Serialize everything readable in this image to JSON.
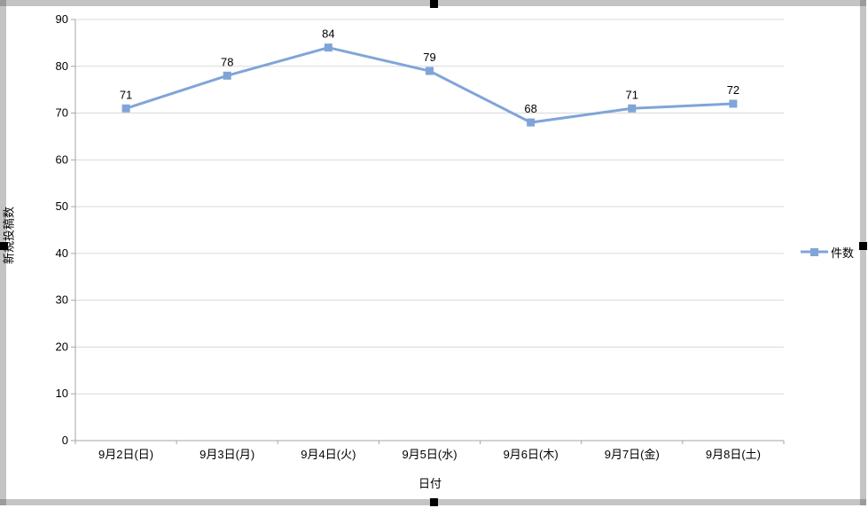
{
  "chart_data": {
    "type": "line",
    "categories": [
      "9月2日(日)",
      "9月3日(月)",
      "9月4日(火)",
      "9月5日(水)",
      "9月6日(木)",
      "9月7日(金)",
      "9月8日(土)"
    ],
    "series": [
      {
        "name": "件数",
        "values": [
          71,
          78,
          84,
          79,
          68,
          71,
          72
        ]
      }
    ],
    "data_labels": [
      71,
      78,
      84,
      79,
      68,
      71,
      72
    ],
    "xlabel": "日付",
    "ylabel": "新規投稿数",
    "ylim": [
      0,
      90
    ],
    "ytick_step": 10,
    "yticks": [
      0,
      10,
      20,
      30,
      40,
      50,
      60,
      70,
      80,
      90
    ],
    "grid": true,
    "legend_position": "right",
    "colors": {
      "series": "#7fa5d8",
      "gridline": "#d9d9d9",
      "axis": "#a6a6a6",
      "text": "#000000",
      "frame": "#c4c4c4",
      "frame_corner": "#9b9b9b",
      "handle": "#000000",
      "background": "#ffffff"
    }
  }
}
